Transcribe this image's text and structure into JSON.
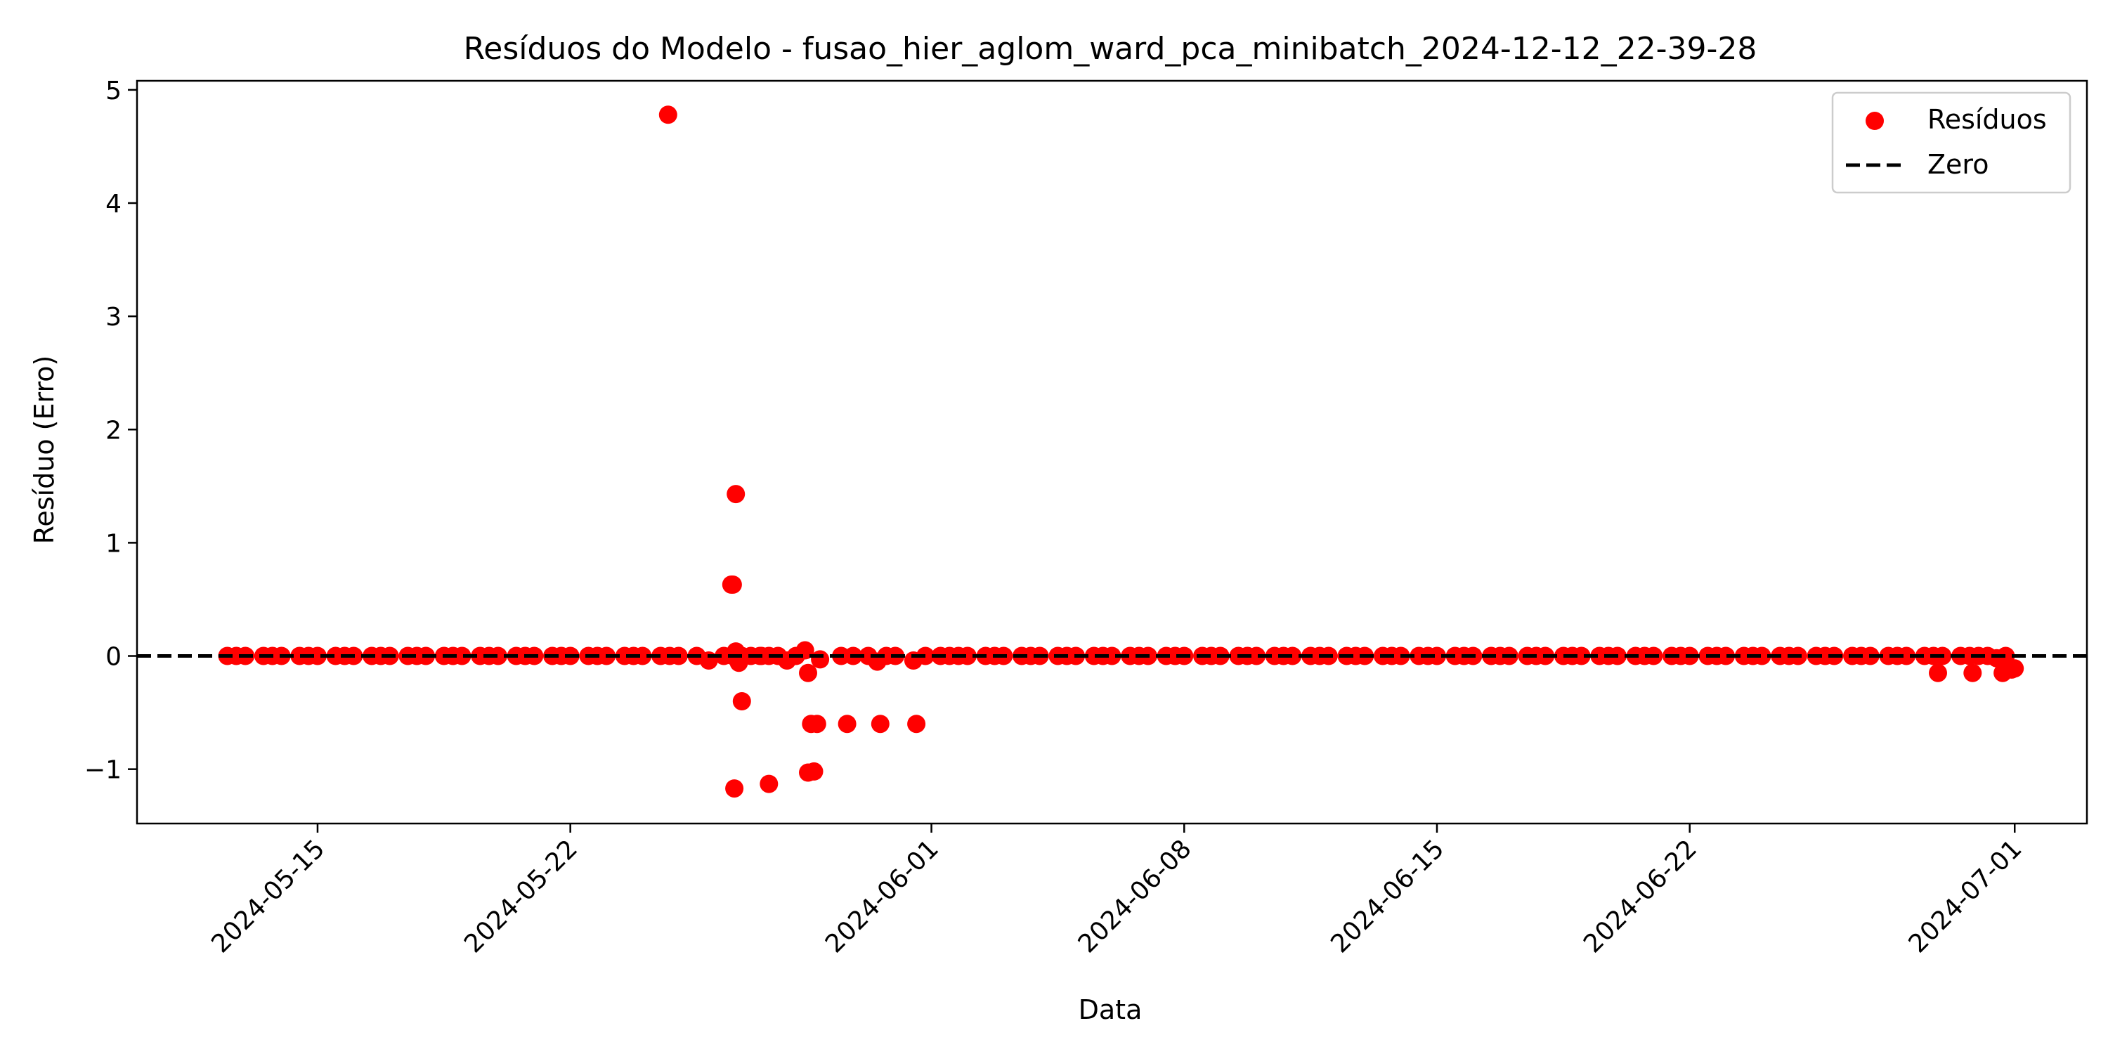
{
  "chart_data": {
    "type": "scatter",
    "title": "Resíduos do Modelo - fusao_hier_aglom_ward_pca_minibatch_2024-12-12_22-39-28",
    "xlabel": "Data",
    "ylabel": "Resíduo (Erro)",
    "xlim": [
      "2024-05-10",
      "2024-07-03"
    ],
    "ylim": [
      -1.48,
      5.08
    ],
    "x_ticks": [
      "2024-05-15",
      "2024-05-22",
      "2024-06-01",
      "2024-06-08",
      "2024-06-15",
      "2024-06-22",
      "2024-07-01"
    ],
    "y_ticks": [
      -1,
      0,
      1,
      2,
      3,
      4,
      5
    ],
    "y_tick_labels": [
      "−1",
      "0",
      "1",
      "2",
      "3",
      "4",
      "5"
    ],
    "grid": false,
    "legend": {
      "placement": "top-right",
      "entries": [
        {
          "label": "Resíduos",
          "marker": "circle",
          "color": "#ff0000"
        },
        {
          "label": "Zero",
          "marker": "dashed-line",
          "color": "#000000"
        }
      ]
    },
    "reference_line": {
      "y": 0,
      "style": "dashed",
      "color": "#000000",
      "label": "Zero"
    },
    "series": [
      {
        "name": "Resíduos",
        "color": "#ff0000",
        "points": [
          [
            "2024-05-12 12:00",
            0
          ],
          [
            "2024-05-12 18:00",
            0
          ],
          [
            "2024-05-13 00:00",
            0
          ],
          [
            "2024-05-13 12:00",
            0
          ],
          [
            "2024-05-13 18:00",
            0
          ],
          [
            "2024-05-14 00:00",
            0
          ],
          [
            "2024-05-14 12:00",
            0
          ],
          [
            "2024-05-14 18:00",
            0
          ],
          [
            "2024-05-15 00:00",
            0
          ],
          [
            "2024-05-15 12:00",
            0
          ],
          [
            "2024-05-15 18:00",
            0
          ],
          [
            "2024-05-16 00:00",
            0
          ],
          [
            "2024-05-16 12:00",
            0
          ],
          [
            "2024-05-16 18:00",
            0
          ],
          [
            "2024-05-17 00:00",
            0
          ],
          [
            "2024-05-17 12:00",
            0
          ],
          [
            "2024-05-17 18:00",
            0
          ],
          [
            "2024-05-18 00:00",
            0
          ],
          [
            "2024-05-18 12:00",
            0
          ],
          [
            "2024-05-18 18:00",
            0
          ],
          [
            "2024-05-19 00:00",
            0
          ],
          [
            "2024-05-19 12:00",
            0
          ],
          [
            "2024-05-19 18:00",
            0
          ],
          [
            "2024-05-20 00:00",
            0
          ],
          [
            "2024-05-20 12:00",
            0
          ],
          [
            "2024-05-20 18:00",
            0
          ],
          [
            "2024-05-21 00:00",
            0
          ],
          [
            "2024-05-21 12:00",
            0
          ],
          [
            "2024-05-21 18:00",
            0
          ],
          [
            "2024-05-22 00:00",
            0
          ],
          [
            "2024-05-22 12:00",
            0
          ],
          [
            "2024-05-22 18:00",
            0
          ],
          [
            "2024-05-23 00:00",
            0
          ],
          [
            "2024-05-23 12:00",
            0
          ],
          [
            "2024-05-23 18:00",
            0
          ],
          [
            "2024-05-24 00:00",
            0
          ],
          [
            "2024-05-24 12:00",
            0
          ],
          [
            "2024-05-24 18:00",
            0
          ],
          [
            "2024-05-25 00:00",
            0
          ],
          [
            "2024-05-24 17:00",
            4.78
          ],
          [
            "2024-05-25 12:00",
            0
          ],
          [
            "2024-05-25 20:00",
            -0.04
          ],
          [
            "2024-05-26 06:00",
            0
          ],
          [
            "2024-05-26 12:00",
            0
          ],
          [
            "2024-05-26 18:00",
            0
          ],
          [
            "2024-05-27 00:00",
            0
          ],
          [
            "2024-05-27 06:00",
            0
          ],
          [
            "2024-05-27 12:00",
            0
          ],
          [
            "2024-05-26 11:00",
            0.63
          ],
          [
            "2024-05-26 12:00",
            0.63
          ],
          [
            "2024-05-26 14:00",
            1.43
          ],
          [
            "2024-05-26 13:00",
            -1.17
          ],
          [
            "2024-05-26 14:00",
            0.04
          ],
          [
            "2024-05-26 14:30",
            0.02
          ],
          [
            "2024-05-26 15:00",
            -0.01
          ],
          [
            "2024-05-26 16:00",
            -0.06
          ],
          [
            "2024-05-26 18:00",
            -0.4
          ],
          [
            "2024-05-27 07:00",
            0
          ],
          [
            "2024-05-27 12:00",
            -1.13
          ],
          [
            "2024-05-27 18:00",
            0
          ],
          [
            "2024-05-28 00:00",
            -0.04
          ],
          [
            "2024-05-28 06:00",
            0
          ],
          [
            "2024-05-28 12:00",
            0.05
          ],
          [
            "2024-05-28 14:00",
            -0.15
          ],
          [
            "2024-05-28 16:00",
            -0.6
          ],
          [
            "2024-05-28 14:00",
            -1.03
          ],
          [
            "2024-05-28 18:00",
            -1.02
          ],
          [
            "2024-05-28 20:00",
            -0.6
          ],
          [
            "2024-05-28 22:00",
            -0.03
          ],
          [
            "2024-05-29 12:00",
            0
          ],
          [
            "2024-05-29 16:00",
            -0.6
          ],
          [
            "2024-05-29 20:00",
            0
          ],
          [
            "2024-05-30 06:00",
            0
          ],
          [
            "2024-05-30 12:00",
            -0.05
          ],
          [
            "2024-05-30 14:00",
            -0.6
          ],
          [
            "2024-05-30 18:00",
            0
          ],
          [
            "2024-05-31 00:00",
            0
          ],
          [
            "2024-05-31 12:00",
            -0.04
          ],
          [
            "2024-05-31 14:00",
            -0.6
          ],
          [
            "2024-05-31 20:00",
            0
          ],
          [
            "2024-06-01 06:00",
            0
          ],
          [
            "2024-06-01 12:00",
            0
          ],
          [
            "2024-06-01 18:00",
            0
          ],
          [
            "2024-06-02 00:00",
            0
          ],
          [
            "2024-06-02 12:00",
            0
          ],
          [
            "2024-06-02 18:00",
            0
          ],
          [
            "2024-06-03 00:00",
            0
          ],
          [
            "2024-06-03 12:00",
            0
          ],
          [
            "2024-06-03 18:00",
            0
          ],
          [
            "2024-06-04 00:00",
            0
          ],
          [
            "2024-06-04 12:00",
            0
          ],
          [
            "2024-06-04 18:00",
            0
          ],
          [
            "2024-06-05 00:00",
            0
          ],
          [
            "2024-06-05 12:00",
            0
          ],
          [
            "2024-06-05 18:00",
            0
          ],
          [
            "2024-06-06 00:00",
            0
          ],
          [
            "2024-06-06 12:00",
            0
          ],
          [
            "2024-06-06 18:00",
            0
          ],
          [
            "2024-06-07 00:00",
            0
          ],
          [
            "2024-06-07 12:00",
            0
          ],
          [
            "2024-06-07 18:00",
            0
          ],
          [
            "2024-06-08 00:00",
            0
          ],
          [
            "2024-06-08 12:00",
            0
          ],
          [
            "2024-06-08 18:00",
            0
          ],
          [
            "2024-06-09 00:00",
            0
          ],
          [
            "2024-06-09 12:00",
            0
          ],
          [
            "2024-06-09 18:00",
            0
          ],
          [
            "2024-06-10 00:00",
            0
          ],
          [
            "2024-06-10 12:00",
            0
          ],
          [
            "2024-06-10 18:00",
            0
          ],
          [
            "2024-06-11 00:00",
            0
          ],
          [
            "2024-06-11 12:00",
            0
          ],
          [
            "2024-06-11 18:00",
            0
          ],
          [
            "2024-06-12 00:00",
            0
          ],
          [
            "2024-06-12 12:00",
            0
          ],
          [
            "2024-06-12 18:00",
            0
          ],
          [
            "2024-06-13 00:00",
            0
          ],
          [
            "2024-06-13 12:00",
            0
          ],
          [
            "2024-06-13 18:00",
            0
          ],
          [
            "2024-06-14 00:00",
            0
          ],
          [
            "2024-06-14 12:00",
            0
          ],
          [
            "2024-06-14 18:00",
            0
          ],
          [
            "2024-06-15 00:00",
            0
          ],
          [
            "2024-06-15 12:00",
            0
          ],
          [
            "2024-06-15 18:00",
            0
          ],
          [
            "2024-06-16 00:00",
            0
          ],
          [
            "2024-06-16 12:00",
            0
          ],
          [
            "2024-06-16 18:00",
            0
          ],
          [
            "2024-06-17 00:00",
            0
          ],
          [
            "2024-06-17 12:00",
            0
          ],
          [
            "2024-06-17 18:00",
            0
          ],
          [
            "2024-06-18 00:00",
            0
          ],
          [
            "2024-06-18 12:00",
            0
          ],
          [
            "2024-06-18 18:00",
            0
          ],
          [
            "2024-06-19 00:00",
            0
          ],
          [
            "2024-06-19 12:00",
            0
          ],
          [
            "2024-06-19 18:00",
            0
          ],
          [
            "2024-06-20 00:00",
            0
          ],
          [
            "2024-06-20 12:00",
            0
          ],
          [
            "2024-06-20 18:00",
            0
          ],
          [
            "2024-06-21 00:00",
            0
          ],
          [
            "2024-06-21 12:00",
            0
          ],
          [
            "2024-06-21 18:00",
            0
          ],
          [
            "2024-06-22 00:00",
            0
          ],
          [
            "2024-06-22 12:00",
            0
          ],
          [
            "2024-06-22 18:00",
            0
          ],
          [
            "2024-06-23 00:00",
            0
          ],
          [
            "2024-06-23 12:00",
            0
          ],
          [
            "2024-06-23 18:00",
            0
          ],
          [
            "2024-06-24 00:00",
            0
          ],
          [
            "2024-06-24 12:00",
            0
          ],
          [
            "2024-06-24 18:00",
            0
          ],
          [
            "2024-06-25 00:00",
            0
          ],
          [
            "2024-06-25 12:00",
            0
          ],
          [
            "2024-06-25 18:00",
            0
          ],
          [
            "2024-06-26 00:00",
            0
          ],
          [
            "2024-06-26 12:00",
            0
          ],
          [
            "2024-06-26 18:00",
            0
          ],
          [
            "2024-06-27 00:00",
            0
          ],
          [
            "2024-06-27 12:00",
            0
          ],
          [
            "2024-06-27 18:00",
            0
          ],
          [
            "2024-06-28 00:00",
            0
          ],
          [
            "2024-06-28 12:00",
            0
          ],
          [
            "2024-06-28 18:00",
            0
          ],
          [
            "2024-06-29 00:00",
            0
          ],
          [
            "2024-06-28 21:00",
            -0.15
          ],
          [
            "2024-06-29 12:00",
            0
          ],
          [
            "2024-06-29 18:00",
            0
          ],
          [
            "2024-06-29 20:00",
            -0.15
          ],
          [
            "2024-06-30 00:00",
            0
          ],
          [
            "2024-06-30 06:00",
            0
          ],
          [
            "2024-06-30 12:00",
            -0.02
          ],
          [
            "2024-06-30 16:00",
            -0.15
          ],
          [
            "2024-06-30 18:00",
            0
          ],
          [
            "2024-06-30 22:00",
            -0.12
          ],
          [
            "2024-07-01 00:00",
            -0.11
          ]
        ]
      }
    ]
  }
}
